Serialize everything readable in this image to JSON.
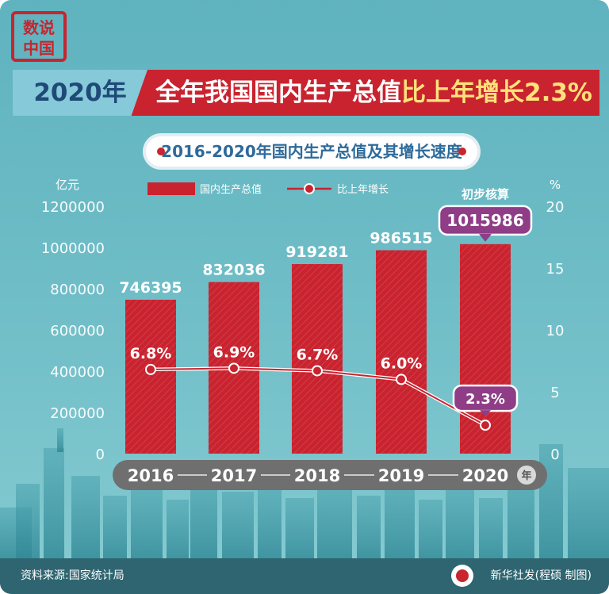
{
  "stamp": {
    "text": "数说中国"
  },
  "banner": {
    "year": "2020年",
    "title_main": "全年我国国内生产总值",
    "title_highlight": "比上年增长2.3%"
  },
  "subtitle": "2016-2020年国内生产总值及其增长速度",
  "source": "资料来源:国家统计局",
  "credit": "新华社发(程硕 制图)",
  "colors": {
    "bar": "#c9232f",
    "line": "#c9232f",
    "callout": "#8e3d86",
    "axis_text": "#ffffff",
    "footer": "#2e6570"
  },
  "chart_data": {
    "type": "bar",
    "categories": [
      "2016",
      "2017",
      "2018",
      "2019",
      "2020"
    ],
    "x_unit": "年",
    "series": [
      {
        "name": "国内生产总值",
        "type": "bar",
        "axis": "left",
        "values": [
          746395,
          832036,
          919281,
          986515,
          1015986
        ]
      },
      {
        "name": "比上年增长",
        "type": "line",
        "axis": "right",
        "values": [
          6.8,
          6.9,
          6.7,
          6.0,
          2.3
        ]
      }
    ],
    "bar_labels": [
      "746395",
      "832036",
      "919281",
      "986515",
      "1015986"
    ],
    "line_labels": [
      "6.8%",
      "6.9%",
      "6.7%",
      "6.0%",
      "2.3%"
    ],
    "ylabel_left": "亿元",
    "ylabel_right": "%",
    "ylim_left": [
      0,
      1200000
    ],
    "ylim_right": [
      0,
      20
    ],
    "yticks_left": [
      "0",
      "200000",
      "400000",
      "600000",
      "800000",
      "1000000",
      "1200000"
    ],
    "yticks_right": [
      "0",
      "5",
      "10",
      "15",
      "20"
    ],
    "annotation": "初步核算",
    "legend_placement": "top-center"
  }
}
